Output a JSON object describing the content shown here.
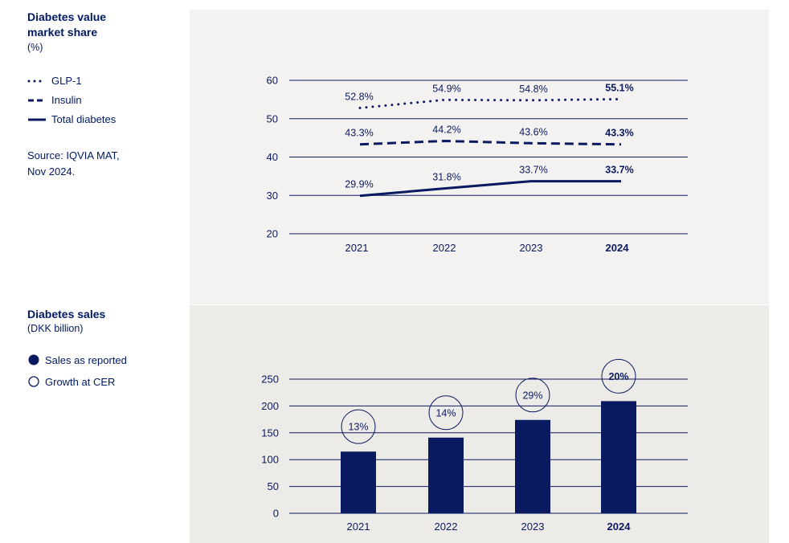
{
  "market_share_legend": {
    "title_line1": "Diabetes value",
    "title_line2": "market share",
    "unit": "(%)",
    "items": [
      "GLP-1",
      "Insulin",
      "Total diabetes"
    ],
    "source_line1": "Source: IQVIA MAT,",
    "source_line2": "Nov 2024."
  },
  "sales_legend": {
    "title": "Diabetes sales",
    "unit": "(DKK billion)",
    "items": [
      "Sales as reported",
      "Growth at CER"
    ]
  },
  "colors": {
    "navy": "#0a1a60",
    "text": "#001965"
  },
  "chart_data": [
    {
      "type": "line",
      "title": "Diabetes value market share (%)",
      "categories": [
        "2021",
        "2022",
        "2023",
        "2024"
      ],
      "highlight_category": "2024",
      "ylim": [
        20,
        60
      ],
      "yticks": [
        20,
        30,
        40,
        50,
        60
      ],
      "series": [
        {
          "name": "GLP-1",
          "style": "dotted",
          "values": [
            52.8,
            54.9,
            54.8,
            55.1
          ],
          "labels": [
            "52.8%",
            "54.9%",
            "54.8%",
            "55.1%"
          ]
        },
        {
          "name": "Insulin",
          "style": "dashed",
          "values": [
            43.3,
            44.2,
            43.6,
            43.3
          ],
          "labels": [
            "43.3%",
            "44.2%",
            "43.6%",
            "43.3%"
          ]
        },
        {
          "name": "Total diabetes",
          "style": "solid",
          "values": [
            29.9,
            31.8,
            33.7,
            33.7
          ],
          "labels": [
            "29.9%",
            "31.8%",
            "33.7%",
            "33.7%"
          ]
        }
      ]
    },
    {
      "type": "bar",
      "title": "Diabetes sales (DKK billion)",
      "categories": [
        "2021",
        "2022",
        "2023",
        "2024"
      ],
      "highlight_category": "2024",
      "ylim": [
        0,
        250
      ],
      "yticks": [
        0,
        50,
        100,
        150,
        200,
        250
      ],
      "series": [
        {
          "name": "Sales as reported",
          "values": [
            115,
            141,
            174,
            209
          ]
        }
      ],
      "growth": {
        "name": "Growth at CER",
        "labels": [
          "13%",
          "14%",
          "29%",
          "20%"
        ]
      }
    }
  ]
}
